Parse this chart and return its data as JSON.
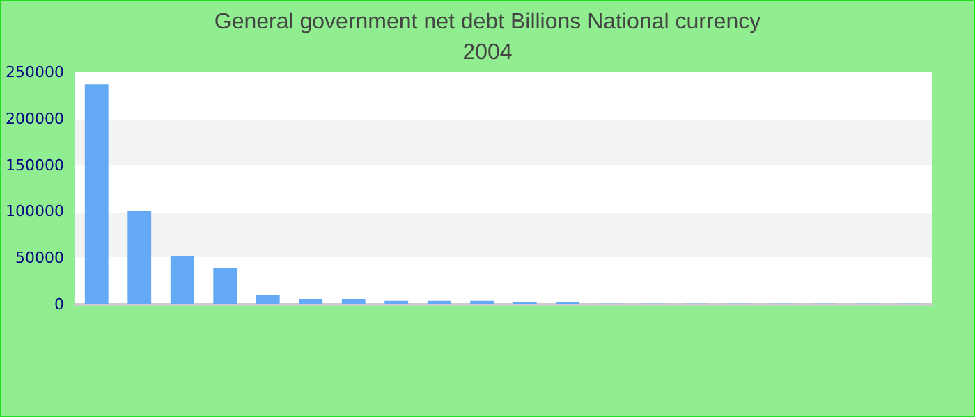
{
  "chart_data": {
    "type": "bar",
    "title": "General government net debt Billions National currency",
    "subtitle": "2004",
    "categories": [
      null,
      null,
      null,
      null,
      null,
      null,
      null,
      null,
      null,
      null,
      null,
      null,
      null,
      null,
      null,
      null,
      null,
      null,
      null,
      null
    ],
    "values": [
      237000,
      101000,
      52000,
      39000,
      10000,
      6000,
      6000,
      4000,
      4000,
      4000,
      3000,
      3000,
      1000,
      1000,
      1000,
      1000,
      1000,
      1000,
      1000,
      1000
    ],
    "color": "#63a9f5",
    "ylim": [
      0,
      250000
    ],
    "yticks": [
      0,
      50000,
      100000,
      150000,
      200000,
      250000
    ],
    "grid": "y"
  }
}
